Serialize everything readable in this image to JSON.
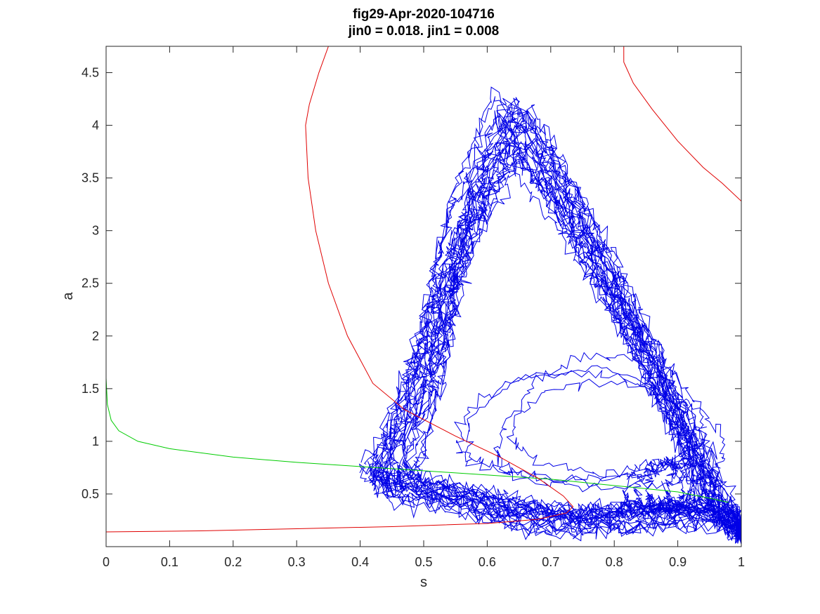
{
  "chart_data": {
    "type": "line",
    "title": [
      "fig29-Apr-2020-104716",
      "jin0 = 0.018. jin1 = 0.008"
    ],
    "xlabel": "s",
    "ylabel": "a",
    "xlim": [
      0,
      1
    ],
    "ylim": [
      0,
      4.75
    ],
    "xticks": [
      0,
      0.1,
      0.2,
      0.3,
      0.4,
      0.5,
      0.6,
      0.7,
      0.8,
      0.9,
      1
    ],
    "xtick_labels": [
      "0",
      "0.1",
      "0.2",
      "0.3",
      "0.4",
      "0.5",
      "0.6",
      "0.7",
      "0.8",
      "0.9",
      "1"
    ],
    "yticks": [
      0.5,
      1,
      1.5,
      2,
      2.5,
      3,
      3.5,
      4,
      4.5
    ],
    "ytick_labels": [
      "0.5",
      "1",
      "1.5",
      "2",
      "2.5",
      "3",
      "3.5",
      "4",
      "4.5"
    ],
    "grid": false,
    "series": [
      {
        "color": "#00cc00",
        "segments": [
          [
            [
              0,
              4.75
            ],
            [
              0,
              2.5
            ],
            [
              0,
              1.6
            ],
            [
              0.002,
              1.35
            ],
            [
              0.008,
              1.2
            ],
            [
              0.02,
              1.1
            ],
            [
              0.05,
              1.0
            ],
            [
              0.1,
              0.93
            ],
            [
              0.2,
              0.85
            ],
            [
              0.3,
              0.8
            ],
            [
              0.4,
              0.76
            ],
            [
              0.5,
              0.72
            ],
            [
              0.6,
              0.68
            ],
            [
              0.7,
              0.64
            ],
            [
              0.8,
              0.58
            ],
            [
              0.9,
              0.52
            ],
            [
              0.95,
              0.46
            ],
            [
              0.98,
              0.42
            ]
          ]
        ]
      },
      {
        "color": "#e00000",
        "segments": [
          [
            [
              0.35,
              4.75
            ],
            [
              0.335,
              4.5
            ],
            [
              0.32,
              4.2
            ],
            [
              0.314,
              4.0
            ],
            [
              0.318,
              3.5
            ],
            [
              0.33,
              3.0
            ],
            [
              0.35,
              2.5
            ],
            [
              0.38,
              2.0
            ],
            [
              0.42,
              1.55
            ],
            [
              0.47,
              1.3
            ],
            [
              0.55,
              1.05
            ],
            [
              0.62,
              0.85
            ],
            [
              0.68,
              0.65
            ],
            [
              0.72,
              0.48
            ],
            [
              0.735,
              0.38
            ],
            [
              0.725,
              0.32
            ],
            [
              0.68,
              0.26
            ],
            [
              0.6,
              0.22
            ],
            [
              0.45,
              0.19
            ],
            [
              0.3,
              0.17
            ],
            [
              0.15,
              0.15
            ],
            [
              0,
              0.14
            ]
          ],
          [
            [
              0.815,
              4.75
            ],
            [
              0.815,
              4.6
            ],
            [
              0.83,
              4.4
            ],
            [
              0.86,
              4.15
            ],
            [
              0.9,
              3.85
            ],
            [
              0.94,
              3.6
            ],
            [
              0.97,
              3.45
            ],
            [
              1.0,
              3.28
            ]
          ]
        ]
      },
      {
        "color": "#0000e6",
        "noisy_trajectories": 32
      }
    ]
  }
}
